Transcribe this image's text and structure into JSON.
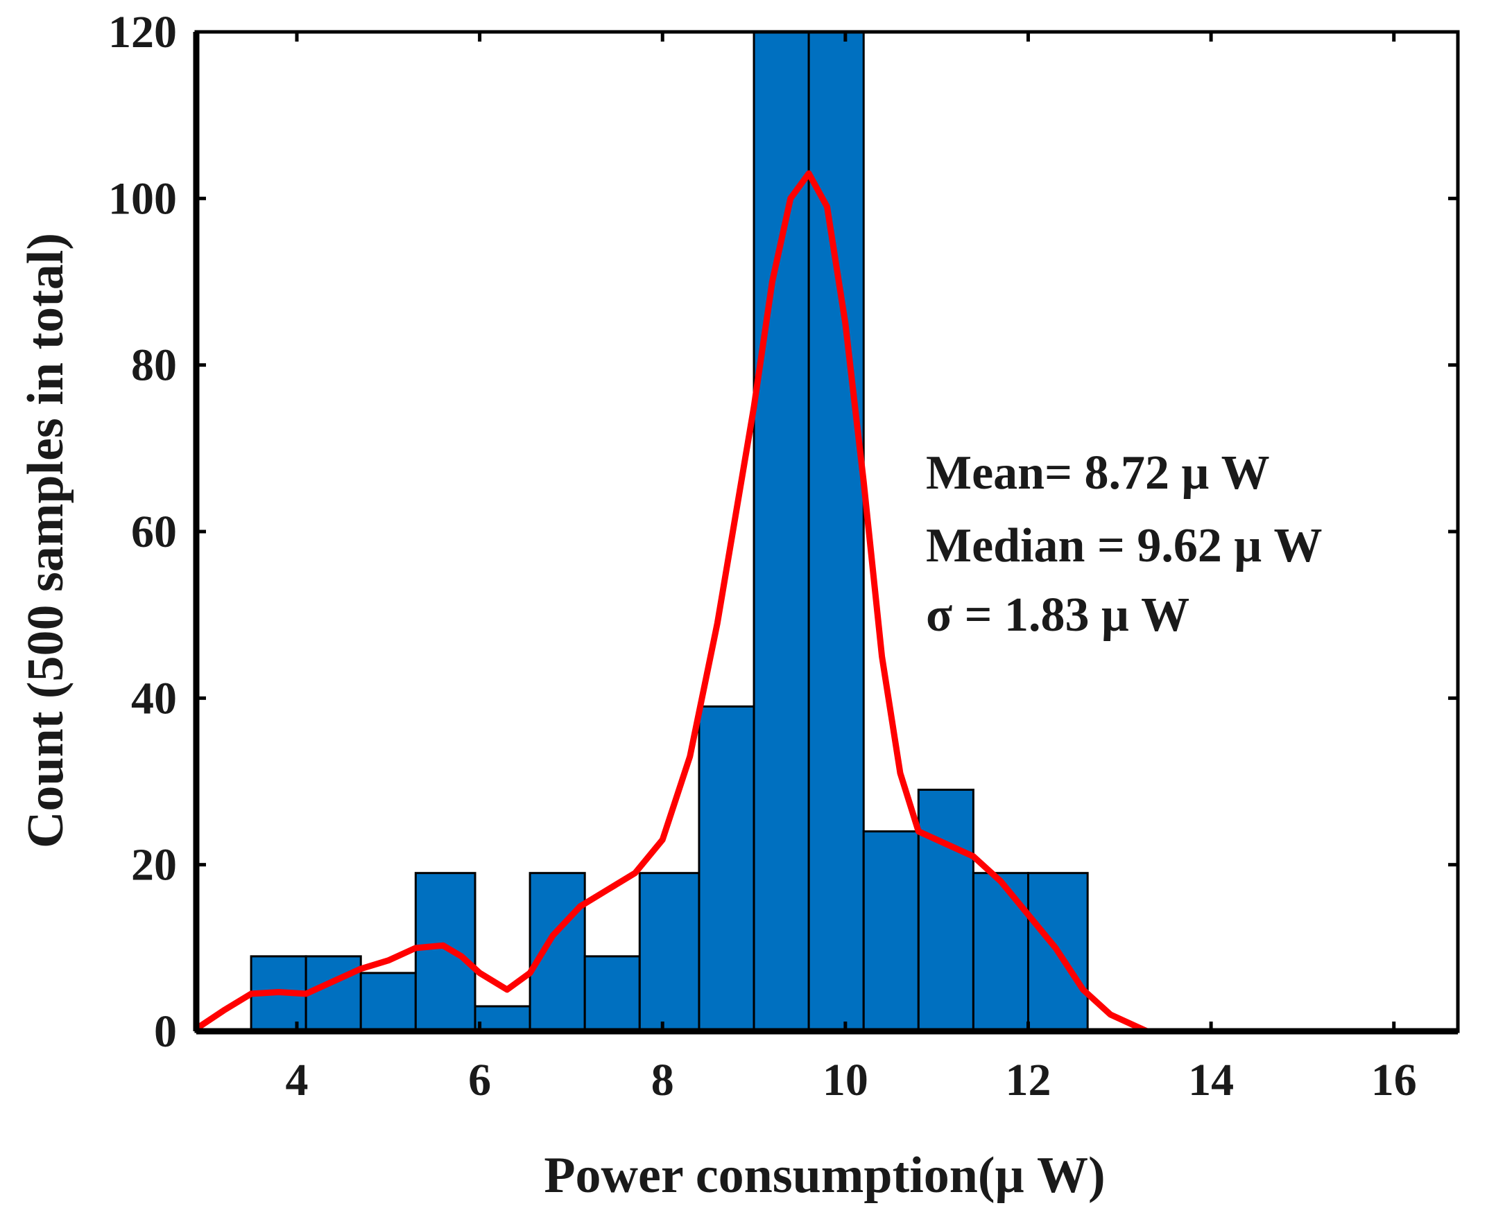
{
  "chart_data": {
    "type": "bar",
    "title": "",
    "xlabel": "Power consumption(μ W)",
    "ylabel": "Count (500 samples in total)",
    "xlim": [
      2.9,
      16.7
    ],
    "ylim": [
      0,
      120
    ],
    "xticks": [
      4,
      6,
      8,
      10,
      12,
      14,
      16
    ],
    "yticks": [
      0,
      20,
      40,
      60,
      80,
      100,
      120
    ],
    "xtick_labels": [
      "4",
      "6",
      "8",
      "10",
      "12",
      "14",
      "16"
    ],
    "ytick_labels": [
      "0",
      "20",
      "40",
      "60",
      "80",
      "100",
      "120"
    ],
    "grid": false,
    "bar_color": "#0070c0",
    "curve_color": "#ff0000",
    "bins": [
      {
        "x0": 3.5,
        "x1": 4.1,
        "value": 9
      },
      {
        "x0": 4.1,
        "x1": 4.7,
        "value": 9
      },
      {
        "x0": 4.7,
        "x1": 5.3,
        "value": 7
      },
      {
        "x0": 5.3,
        "x1": 5.95,
        "value": 19
      },
      {
        "x0": 5.95,
        "x1": 6.55,
        "value": 3
      },
      {
        "x0": 6.55,
        "x1": 7.15,
        "value": 19
      },
      {
        "x0": 7.15,
        "x1": 7.75,
        "value": 9
      },
      {
        "x0": 7.75,
        "x1": 8.4,
        "value": 19
      },
      {
        "x0": 8.4,
        "x1": 9.0,
        "value": 39
      },
      {
        "x0": 9.0,
        "x1": 9.6,
        "value": 120
      },
      {
        "x0": 9.6,
        "x1": 10.2,
        "value": 120
      },
      {
        "x0": 10.2,
        "x1": 10.8,
        "value": 24
      },
      {
        "x0": 10.8,
        "x1": 11.4,
        "value": 29
      },
      {
        "x0": 11.4,
        "x1": 12.0,
        "value": 19
      },
      {
        "x0": 12.0,
        "x1": 12.65,
        "value": 19
      }
    ],
    "density_curve": {
      "x": [
        2.9,
        3.2,
        3.5,
        3.8,
        4.1,
        4.4,
        4.7,
        5.0,
        5.3,
        5.6,
        5.8,
        6.0,
        6.3,
        6.55,
        6.8,
        7.1,
        7.4,
        7.7,
        8.0,
        8.3,
        8.6,
        8.8,
        9.0,
        9.2,
        9.4,
        9.6,
        9.8,
        10.0,
        10.2,
        10.4,
        10.6,
        10.8,
        11.1,
        11.4,
        11.7,
        12.0,
        12.3,
        12.6,
        12.9,
        13.3
      ],
      "y": [
        0.3,
        2.5,
        4.5,
        4.7,
        4.5,
        6,
        7.5,
        8.5,
        10,
        10.3,
        9,
        7,
        5,
        7,
        11.5,
        15,
        17,
        19,
        23,
        33,
        49,
        62,
        75,
        90,
        100,
        103,
        99,
        85,
        66,
        45,
        31,
        24,
        22.5,
        21,
        18,
        14,
        10,
        5,
        2,
        0
      ]
    },
    "annotations": [
      "Mean=  8.72  μ W",
      "Median = 9.62  μ W",
      "σ = 1.83  μ W"
    ]
  }
}
